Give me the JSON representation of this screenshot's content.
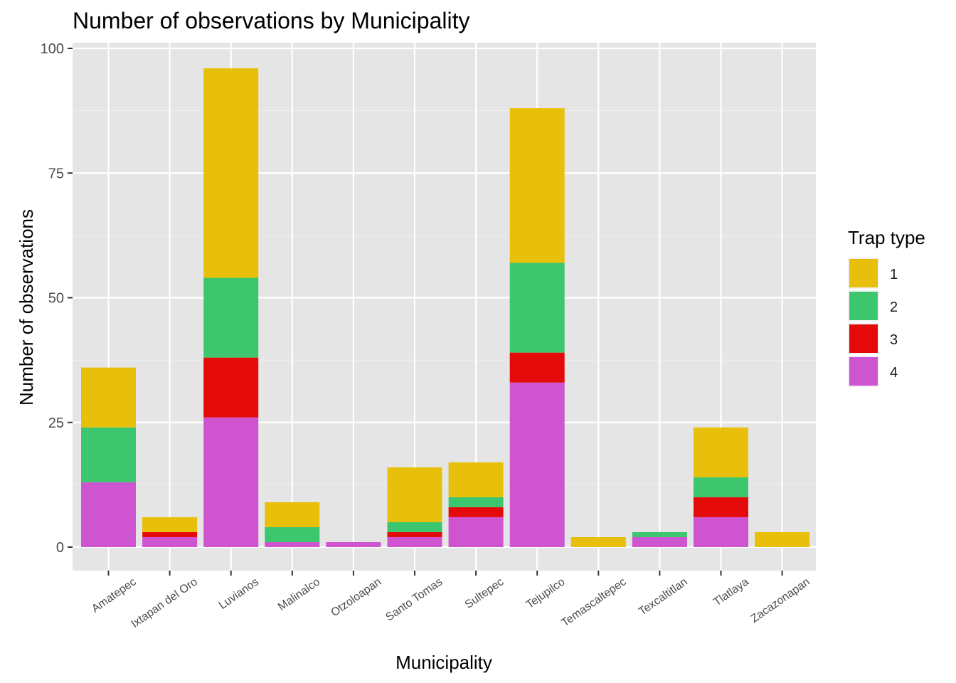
{
  "chart_data": {
    "type": "bar",
    "stacked": true,
    "title": "Number of observations by Municipality",
    "xlabel": "Municipality",
    "ylabel": "Number of observations",
    "ylim": [
      0,
      100
    ],
    "yticks": [
      0,
      25,
      50,
      75,
      100
    ],
    "grid": true,
    "legend_position": "right",
    "legend_title": "Trap type",
    "categories": [
      "Amatepec",
      "Ixtapan del Oro",
      "Luvianos",
      "Malinalco",
      "Otzoloapan",
      "Santo Tomas",
      "Sultepec",
      "Tejupilco",
      "Temascaltepec",
      "Texcaltitlan",
      "Tlatlaya",
      "Zacazonapan"
    ],
    "series": [
      {
        "name": "4",
        "color": "#CE55CF",
        "values": [
          13,
          2,
          26,
          1,
          1,
          2,
          6,
          33,
          0,
          2,
          6,
          0
        ]
      },
      {
        "name": "3",
        "color": "#E50A0A",
        "values": [
          0,
          1,
          12,
          0,
          0,
          1,
          2,
          6,
          0,
          0,
          4,
          0
        ]
      },
      {
        "name": "2",
        "color": "#3CC76E",
        "values": [
          11,
          0,
          16,
          3,
          0,
          2,
          2,
          18,
          0,
          1,
          4,
          0
        ]
      },
      {
        "name": "1",
        "color": "#E8BF0A",
        "values": [
          12,
          3,
          42,
          5,
          0,
          11,
          7,
          31,
          2,
          0,
          10,
          3
        ]
      }
    ],
    "legend_order": [
      "1",
      "2",
      "3",
      "4"
    ]
  }
}
